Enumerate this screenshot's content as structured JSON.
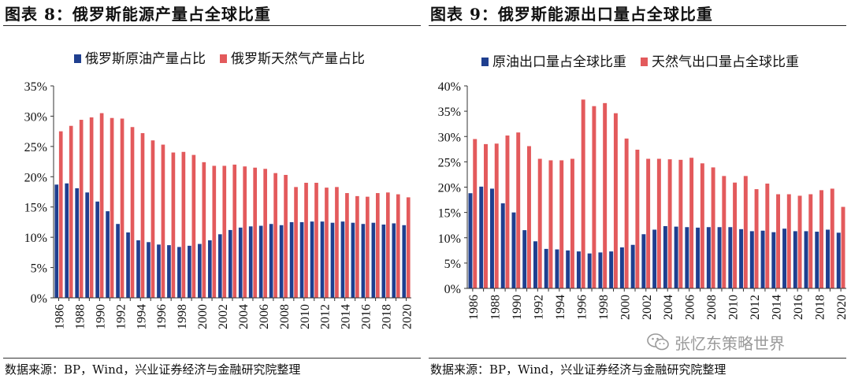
{
  "left_panel": {
    "title": "图表 8：俄罗斯能源产量占全球比重",
    "source": "数据来源：BP，Wind，兴业证券经济与金融研究院整理"
  },
  "right_panel": {
    "title": "图表 9：俄罗斯能源出口量占全球比重",
    "source": "数据来源：BP，Wind，兴业证券经济与金融研究院整理"
  },
  "watermark": {
    "text": "张忆东策略世界",
    "icon": "wechat-icon"
  },
  "chart_data": [
    {
      "type": "bar",
      "x": [
        1986,
        1987,
        1988,
        1989,
        1990,
        1991,
        1992,
        1993,
        1994,
        1995,
        1996,
        1997,
        1998,
        1999,
        2000,
        2001,
        2002,
        2003,
        2004,
        2005,
        2006,
        2007,
        2008,
        2009,
        2010,
        2011,
        2012,
        2013,
        2014,
        2015,
        2016,
        2017,
        2018,
        2019,
        2020
      ],
      "x_tick_labels": [
        "1986",
        "1988",
        "1990",
        "1992",
        "1994",
        "1996",
        "1998",
        "2000",
        "2002",
        "2004",
        "2006",
        "2008",
        "2010",
        "2012",
        "2014",
        "2016",
        "2018",
        "2020"
      ],
      "series": [
        {
          "name": "俄罗斯原油产量占比",
          "color": "#1f3f8f",
          "values": [
            18.7,
            18.9,
            18.1,
            17.4,
            15.9,
            14.3,
            12.2,
            10.8,
            9.5,
            9.2,
            8.8,
            8.7,
            8.4,
            8.6,
            8.9,
            9.5,
            10.5,
            11.2,
            11.6,
            11.8,
            11.9,
            12.2,
            12.0,
            12.5,
            12.5,
            12.6,
            12.6,
            12.4,
            12.6,
            12.4,
            12.2,
            12.4,
            12.1,
            12.3,
            12.0
          ]
        },
        {
          "name": "俄罗斯天然气产量占比",
          "color": "#e35a5c",
          "values": [
            27.5,
            28.4,
            29.4,
            29.8,
            30.5,
            29.7,
            29.6,
            28.2,
            27.2,
            26.0,
            25.3,
            24.0,
            24.1,
            23.6,
            22.4,
            21.8,
            21.8,
            22.0,
            21.7,
            21.5,
            21.3,
            20.6,
            20.3,
            18.3,
            19.0,
            19.0,
            18.2,
            18.3,
            17.3,
            16.8,
            16.7,
            17.3,
            17.4,
            17.1,
            16.6
          ]
        }
      ],
      "ylim": [
        0,
        35
      ],
      "y_tick_labels": [
        "0%",
        "5%",
        "10%",
        "15%",
        "20%",
        "25%",
        "30%",
        "35%"
      ],
      "legend_position": "top"
    },
    {
      "type": "bar",
      "x": [
        1986,
        1987,
        1988,
        1989,
        1990,
        1991,
        1992,
        1993,
        1994,
        1995,
        1996,
        1997,
        1998,
        1999,
        2000,
        2001,
        2002,
        2003,
        2004,
        2005,
        2006,
        2007,
        2008,
        2009,
        2010,
        2011,
        2012,
        2013,
        2014,
        2015,
        2016,
        2017,
        2018,
        2019,
        2020
      ],
      "x_tick_labels": [
        "1986",
        "1988",
        "1990",
        "1992",
        "1994",
        "1996",
        "1998",
        "2000",
        "2002",
        "2004",
        "2006",
        "2008",
        "2010",
        "2012",
        "2014",
        "2016",
        "2018",
        "2020"
      ],
      "series": [
        {
          "name": "原油出口量占全球比重",
          "color": "#1f3f8f",
          "values": [
            18.8,
            20.1,
            19.7,
            16.8,
            15.0,
            11.5,
            9.3,
            7.8,
            7.7,
            7.5,
            7.3,
            6.9,
            7.1,
            7.3,
            8.1,
            8.6,
            10.7,
            11.6,
            12.3,
            12.2,
            12.1,
            12.0,
            12.1,
            12.1,
            12.1,
            11.7,
            11.3,
            11.4,
            11.1,
            11.8,
            11.3,
            11.3,
            11.2,
            11.6,
            11.0
          ]
        },
        {
          "name": "天然气出口量占全球比重",
          "color": "#e35a5c",
          "values": [
            29.5,
            28.5,
            28.6,
            30.2,
            30.8,
            28.1,
            25.6,
            25.3,
            25.3,
            25.6,
            37.3,
            36.0,
            36.6,
            34.6,
            29.6,
            27.4,
            25.6,
            25.6,
            25.5,
            25.4,
            25.8,
            24.7,
            23.9,
            22.2,
            20.9,
            22.2,
            19.6,
            20.7,
            18.6,
            18.6,
            18.3,
            18.6,
            19.4,
            19.7,
            16.1
          ]
        }
      ],
      "ylim": [
        0,
        40
      ],
      "y_tick_labels": [
        "0%",
        "5%",
        "10%",
        "15%",
        "20%",
        "25%",
        "30%",
        "35%",
        "40%"
      ],
      "legend_position": "top"
    }
  ]
}
